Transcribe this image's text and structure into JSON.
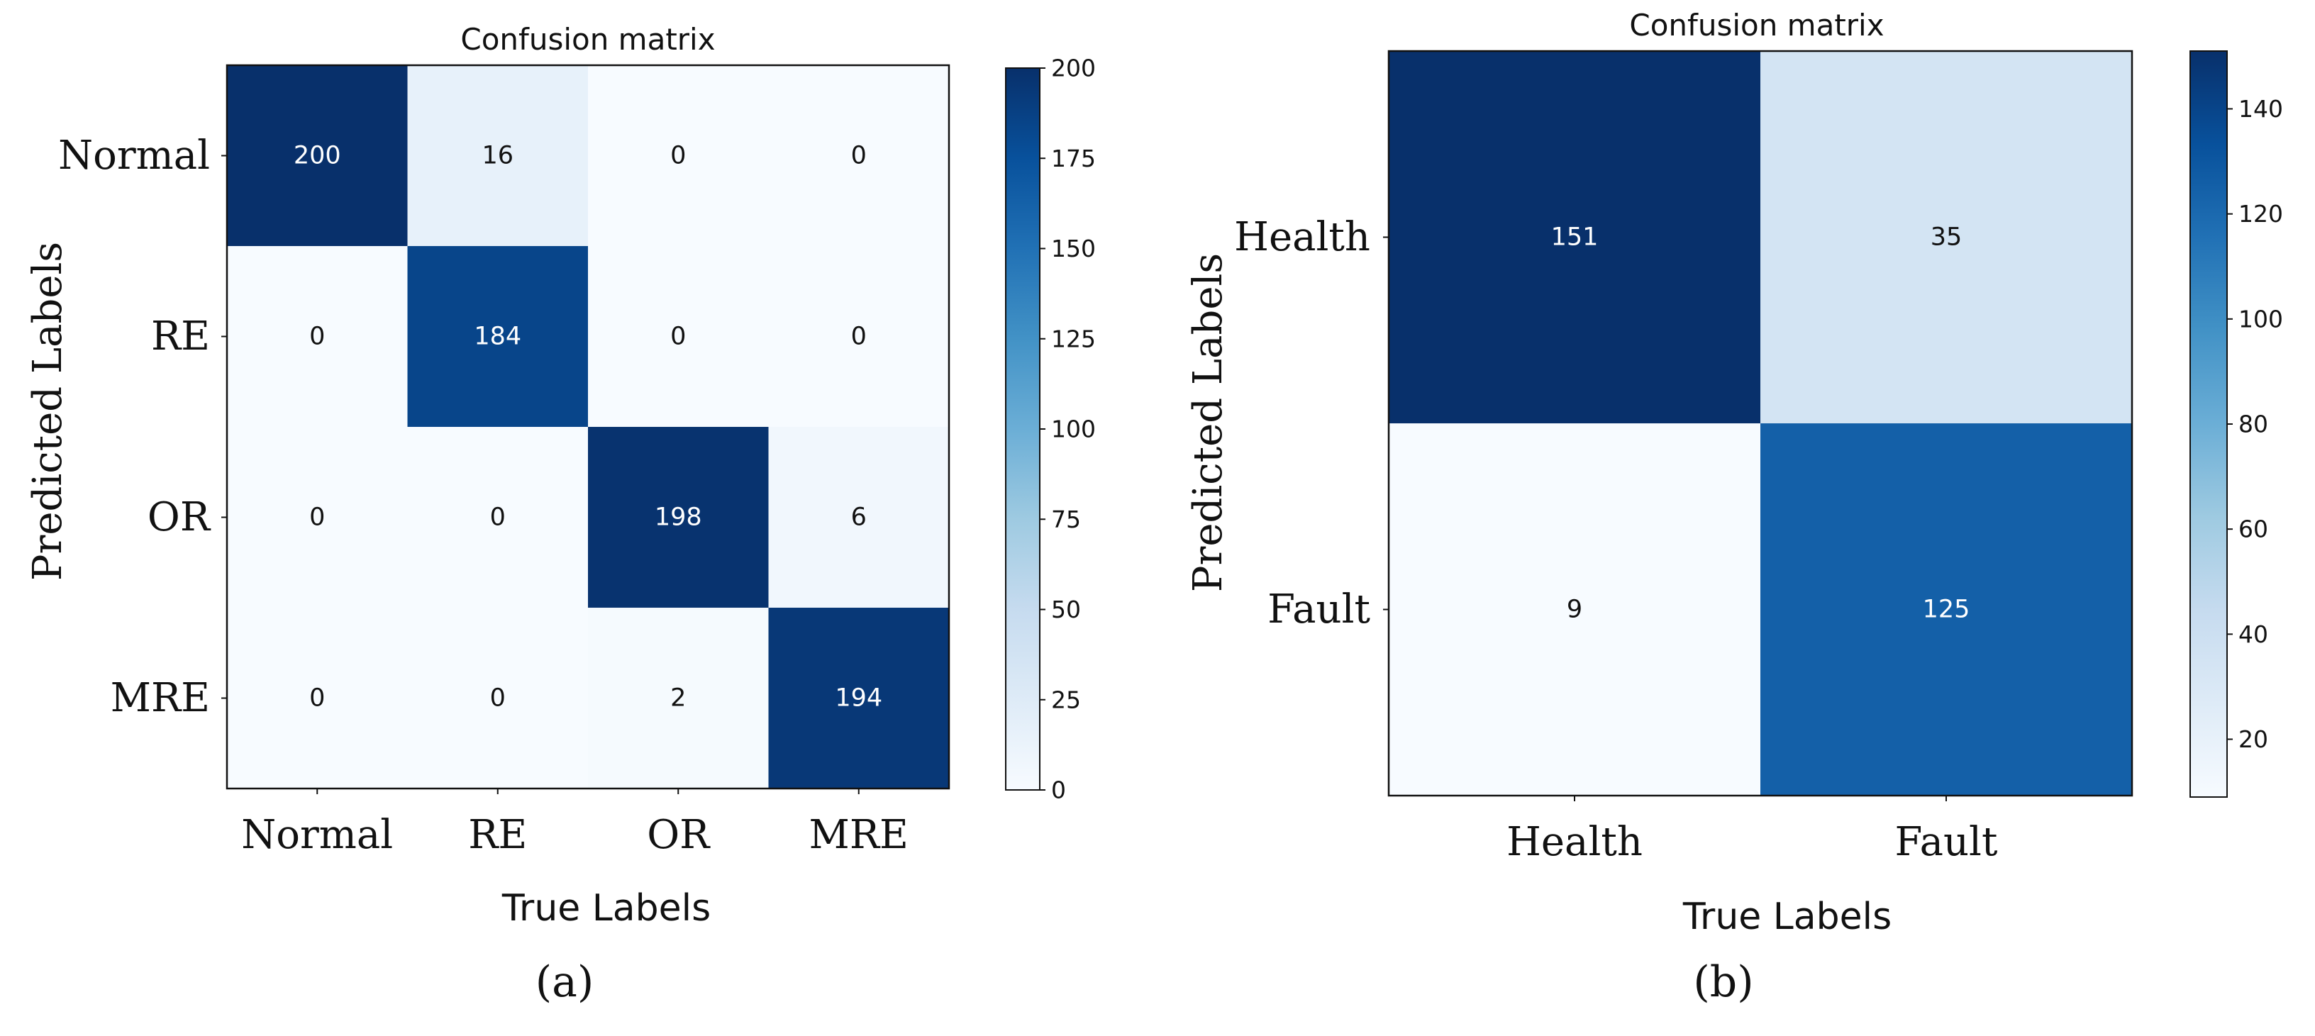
{
  "chart_data": [
    {
      "type": "heatmap",
      "panel_label": "(a)",
      "title": "Confusion matrix",
      "xlabel": "True Labels",
      "ylabel": "Predicted Labels",
      "x_categories": [
        "Normal",
        "RE",
        "OR",
        "MRE"
      ],
      "y_categories": [
        "Normal",
        "RE",
        "OR",
        "MRE"
      ],
      "matrix": [
        [
          200,
          16,
          0,
          0
        ],
        [
          0,
          184,
          0,
          0
        ],
        [
          0,
          0,
          198,
          6
        ],
        [
          0,
          0,
          2,
          194
        ]
      ],
      "colorbar": {
        "min": 0,
        "max": 200,
        "ticks": [
          0,
          25,
          50,
          75,
          100,
          125,
          150,
          175,
          200
        ]
      },
      "colormap": "Blues"
    },
    {
      "type": "heatmap",
      "panel_label": "(b)",
      "title": "Confusion matrix",
      "xlabel": "True Labels",
      "ylabel": "Predicted Labels",
      "x_categories": [
        "Health",
        "Fault"
      ],
      "y_categories": [
        "Health",
        "Fault"
      ],
      "matrix": [
        [
          151,
          35
        ],
        [
          9,
          125
        ]
      ],
      "colorbar": {
        "min": 9,
        "max": 151,
        "ticks": [
          20,
          40,
          60,
          80,
          100,
          120,
          140
        ]
      },
      "colormap": "Blues"
    }
  ],
  "colors": {
    "blues_low": "#f7fbff",
    "blues_high": "#08306b",
    "text_light": "#ffffff",
    "text_dark": "#111111"
  }
}
